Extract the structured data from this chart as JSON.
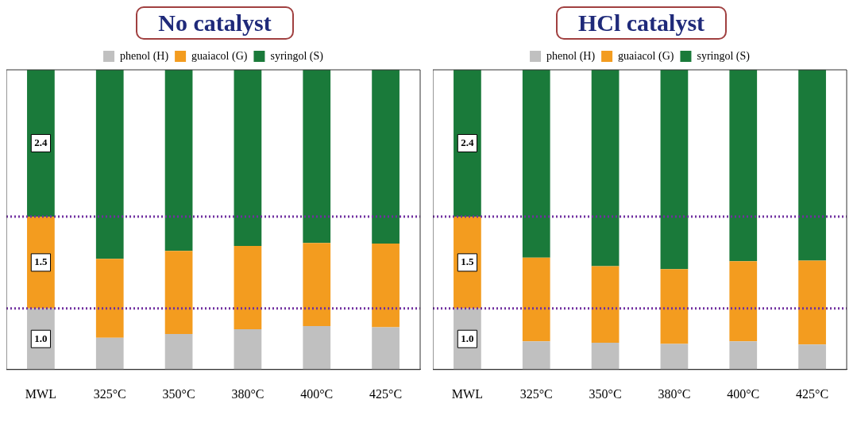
{
  "chart_data": [
    {
      "type": "bar",
      "title": "No catalyst",
      "stacked": true,
      "legend": "top",
      "tick_labels": "x",
      "ylim": [
        0,
        4.9
      ],
      "categories": [
        "MWL",
        "325°C",
        "350°C",
        "380°C",
        "400°C",
        "425°C"
      ],
      "series": [
        {
          "name": "phenol (H)",
          "color": "#c0c0c0",
          "values": [
            1.0,
            0.52,
            0.58,
            0.66,
            0.71,
            0.69
          ],
          "value_labels": [
            "1.0",
            null,
            null,
            null,
            null,
            null
          ]
        },
        {
          "name": "guaiacol (G)",
          "color": "#f39c1f",
          "values": [
            1.5,
            1.29,
            1.36,
            1.36,
            1.36,
            1.37
          ],
          "value_labels": [
            "1.5",
            null,
            null,
            null,
            null,
            null
          ]
        },
        {
          "name": "syringol (S)",
          "color": "#1a7a3a",
          "values": [
            2.4,
            3.09,
            2.96,
            2.88,
            2.83,
            2.84
          ],
          "value_labels": [
            "2.4",
            null,
            null,
            null,
            null,
            null
          ]
        }
      ],
      "ref_lines": [
        {
          "axis": "y",
          "value": 1.0,
          "color": "#7030a0",
          "line_style": "dotted"
        },
        {
          "axis": "y",
          "value": 2.5,
          "color": "#7030a0",
          "line_style": "dotted"
        }
      ]
    },
    {
      "type": "bar",
      "title": "HCl catalyst",
      "stacked": true,
      "legend": "top",
      "tick_labels": "x",
      "ylim": [
        0,
        4.9
      ],
      "categories": [
        "MWL",
        "325°C",
        "350°C",
        "380°C",
        "400°C",
        "425°C"
      ],
      "series": [
        {
          "name": "phenol (H)",
          "color": "#c0c0c0",
          "values": [
            1.0,
            0.46,
            0.44,
            0.42,
            0.46,
            0.41
          ],
          "value_labels": [
            "1.0",
            null,
            null,
            null,
            null,
            null
          ]
        },
        {
          "name": "guaiacol (G)",
          "color": "#f39c1f",
          "values": [
            1.5,
            1.37,
            1.25,
            1.22,
            1.31,
            1.37
          ],
          "value_labels": [
            "1.5",
            null,
            null,
            null,
            null,
            null
          ]
        },
        {
          "name": "syringol (S)",
          "color": "#1a7a3a",
          "values": [
            2.4,
            3.07,
            3.21,
            3.26,
            3.13,
            3.12
          ],
          "value_labels": [
            "2.4",
            null,
            null,
            null,
            null,
            null
          ]
        }
      ],
      "ref_lines": [
        {
          "axis": "y",
          "value": 1.0,
          "color": "#7030a0",
          "line_style": "dotted"
        },
        {
          "axis": "y",
          "value": 2.5,
          "color": "#7030a0",
          "line_style": "dotted"
        }
      ]
    }
  ]
}
